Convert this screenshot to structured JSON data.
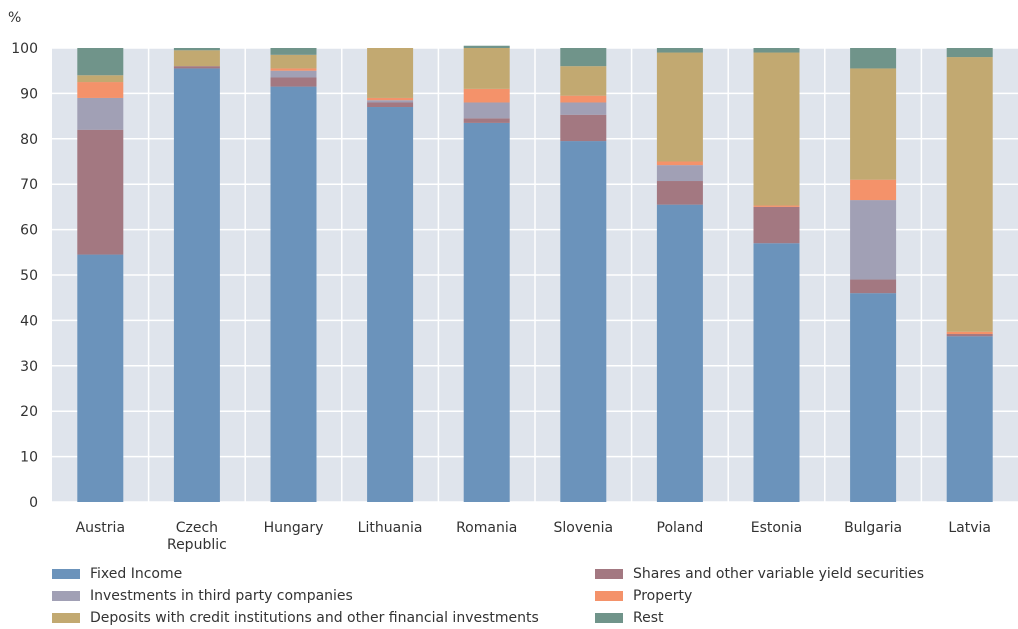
{
  "chart_data": {
    "type": "bar",
    "stacked": true,
    "ylabel": "%",
    "ylim": [
      0,
      100
    ],
    "yticks": [
      0,
      10,
      20,
      30,
      40,
      50,
      60,
      70,
      80,
      90,
      100
    ],
    "grid": true,
    "legend_position": "bottom",
    "categories": [
      "Austria",
      "Czech Republic",
      "Hungary",
      "Lithuania",
      "Romania",
      "Slovenia",
      "Poland",
      "Estonia",
      "Bulgaria",
      "Latvia"
    ],
    "category_lines": [
      [
        "Austria"
      ],
      [
        "Czech",
        "Republic"
      ],
      [
        "Hungary"
      ],
      [
        "Lithuania"
      ],
      [
        "Romania"
      ],
      [
        "Slovenia"
      ],
      [
        "Poland"
      ],
      [
        "Estonia"
      ],
      [
        "Bulgaria"
      ],
      [
        "Latvia"
      ]
    ],
    "series": [
      {
        "name": "Fixed Income",
        "color": "#6b93bb",
        "values": [
          54.5,
          95.5,
          91.5,
          87,
          83.5,
          79.5,
          65.5,
          57,
          46,
          36.5
        ]
      },
      {
        "name": "Shares and other variable yield securities",
        "color": "#a37881",
        "values": [
          27.5,
          0.5,
          2,
          1,
          1,
          5.8,
          5.2,
          8,
          3,
          0.5
        ]
      },
      {
        "name": "Investments in third party companies",
        "color": "#a1a0b5",
        "values": [
          7,
          0,
          1.5,
          0.5,
          3.5,
          2.7,
          3.5,
          0,
          17.5,
          0
        ]
      },
      {
        "name": "Property",
        "color": "#f4926a",
        "values": [
          3.5,
          0,
          0.5,
          0.5,
          3,
          1.5,
          0.8,
          0.3,
          4.5,
          0.5
        ]
      },
      {
        "name": "Deposits with credit institutions and other financial investments",
        "color": "#c2a971",
        "values": [
          1.5,
          3.5,
          3,
          11,
          9,
          6.5,
          24,
          33.7,
          24.5,
          60.5
        ]
      },
      {
        "name": "Rest",
        "color": "#70948a",
        "values": [
          6,
          0.5,
          1.5,
          0,
          0.5,
          4,
          1,
          1,
          4.5,
          2
        ]
      }
    ]
  },
  "colors": {
    "plot_background": "#dfe4ec",
    "gridline": "#ffffff"
  }
}
